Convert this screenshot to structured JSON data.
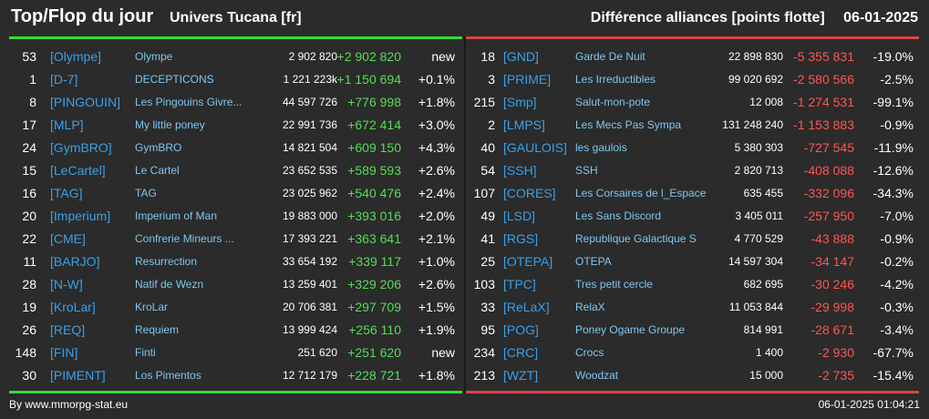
{
  "header": {
    "title": "Top/Flop du jour",
    "universe": "Univers Tucana [fr]",
    "category": "Différence alliances [points flotte]",
    "date": "06-01-2025"
  },
  "colors": {
    "positive": "#55dd55",
    "negative": "#ff5555",
    "tag": "#3aa0e8",
    "name": "#7fc6f0"
  },
  "top": [
    {
      "rank": "53",
      "tag": "[Olympe]",
      "name": "Olympe",
      "points": "2 902 820",
      "diff": "+2 902 820",
      "pct": "new"
    },
    {
      "rank": "1",
      "tag": "[D-7]",
      "name": "DECEPTICONS",
      "points": "1 221 223k",
      "diff": "+1 150 694",
      "pct": "+0.1%"
    },
    {
      "rank": "8",
      "tag": "[PINGOUIN]",
      "name": "Les Pingouins Givre...",
      "points": "44 597 726",
      "diff": "+776 998",
      "pct": "+1.8%"
    },
    {
      "rank": "17",
      "tag": "[MLP]",
      "name": "My little poney",
      "points": "22 991 736",
      "diff": "+672 414",
      "pct": "+3.0%"
    },
    {
      "rank": "24",
      "tag": "[GymBRO]",
      "name": "GymBRO",
      "points": "14 821 504",
      "diff": "+609 150",
      "pct": "+4.3%"
    },
    {
      "rank": "15",
      "tag": "[LeCartel]",
      "name": "Le Cartel",
      "points": "23 652 535",
      "diff": "+589 593",
      "pct": "+2.6%"
    },
    {
      "rank": "16",
      "tag": "[TAG]",
      "name": "TAG",
      "points": "23 025 962",
      "diff": "+540 476",
      "pct": "+2.4%"
    },
    {
      "rank": "20",
      "tag": "[Imperium]",
      "name": "Imperium of Man",
      "points": "19 883 000",
      "diff": "+393 016",
      "pct": "+2.0%"
    },
    {
      "rank": "22",
      "tag": "[CME]",
      "name": "Confrerie Mineurs ...",
      "points": "17 393 221",
      "diff": "+363 641",
      "pct": "+2.1%"
    },
    {
      "rank": "11",
      "tag": "[BARJO]",
      "name": "Resurrection",
      "points": "33 654 192",
      "diff": "+339 117",
      "pct": "+1.0%"
    },
    {
      "rank": "28",
      "tag": "[N-W]",
      "name": "Natif de Wezn",
      "points": "13 259 401",
      "diff": "+329 206",
      "pct": "+2.6%"
    },
    {
      "rank": "19",
      "tag": "[KroLar]",
      "name": "KroLar",
      "points": "20 706 381",
      "diff": "+297 709",
      "pct": "+1.5%"
    },
    {
      "rank": "26",
      "tag": "[REQ]",
      "name": "Requiem",
      "points": "13 999 424",
      "diff": "+256 110",
      "pct": "+1.9%"
    },
    {
      "rank": "148",
      "tag": "[FIN]",
      "name": "Finti",
      "points": "251 620",
      "diff": "+251 620",
      "pct": "new"
    },
    {
      "rank": "30",
      "tag": "[PIMENT]",
      "name": "Los Pimentos",
      "points": "12 712 179",
      "diff": "+228 721",
      "pct": "+1.8%"
    }
  ],
  "flop": [
    {
      "rank": "18",
      "tag": "[GND]",
      "name": "Garde De Nuit",
      "points": "22 898 830",
      "diff": "-5 355 831",
      "pct": "-19.0%"
    },
    {
      "rank": "3",
      "tag": "[PRIME]",
      "name": "Les Irreductibles",
      "points": "99 020 692",
      "diff": "-2 580 566",
      "pct": "-2.5%"
    },
    {
      "rank": "215",
      "tag": "[Smp]",
      "name": "Salut-mon-pote",
      "points": "12 008",
      "diff": "-1 274 531",
      "pct": "-99.1%"
    },
    {
      "rank": "2",
      "tag": "[LMPS]",
      "name": "Les Mecs Pas Sympa",
      "points": "131 248 240",
      "diff": "-1 153 883",
      "pct": "-0.9%"
    },
    {
      "rank": "40",
      "tag": "[GAULOIS]",
      "name": "les gaulois",
      "points": "5 380 303",
      "diff": "-727 545",
      "pct": "-11.9%"
    },
    {
      "rank": "54",
      "tag": "[SSH]",
      "name": "SSH",
      "points": "2 820 713",
      "diff": "-408 088",
      "pct": "-12.6%"
    },
    {
      "rank": "107",
      "tag": "[CORES]",
      "name": "Les Corsaires de l_Espace",
      "points": "635 455",
      "diff": "-332 096",
      "pct": "-34.3%"
    },
    {
      "rank": "49",
      "tag": "[LSD]",
      "name": "Les Sans Discord",
      "points": "3 405 011",
      "diff": "-257 950",
      "pct": "-7.0%"
    },
    {
      "rank": "41",
      "tag": "[RGS]",
      "name": "Republique Galactique S",
      "points": "4 770 529",
      "diff": "-43 888",
      "pct": "-0.9%"
    },
    {
      "rank": "25",
      "tag": "[OTEPA]",
      "name": "OTEPA",
      "points": "14 597 304",
      "diff": "-34 147",
      "pct": "-0.2%"
    },
    {
      "rank": "103",
      "tag": "[TPC]",
      "name": "Tres petit cercle",
      "points": "682 695",
      "diff": "-30 246",
      "pct": "-4.2%"
    },
    {
      "rank": "33",
      "tag": "[ReLaX]",
      "name": "RelaX",
      "points": "11 053 844",
      "diff": "-29 998",
      "pct": "-0.3%"
    },
    {
      "rank": "95",
      "tag": "[POG]",
      "name": "Poney Ogame Groupe",
      "points": "814 991",
      "diff": "-28 671",
      "pct": "-3.4%"
    },
    {
      "rank": "234",
      "tag": "[CRC]",
      "name": "Crocs",
      "points": "1 400",
      "diff": "-2 930",
      "pct": "-67.7%"
    },
    {
      "rank": "213",
      "tag": "[WZT]",
      "name": "Woodzat",
      "points": "15 000",
      "diff": "-2 735",
      "pct": "-15.4%"
    }
  ],
  "footer": {
    "credit": "By www.mmorpg-stat.eu",
    "timestamp": "06-01-2025 01:04:21"
  }
}
